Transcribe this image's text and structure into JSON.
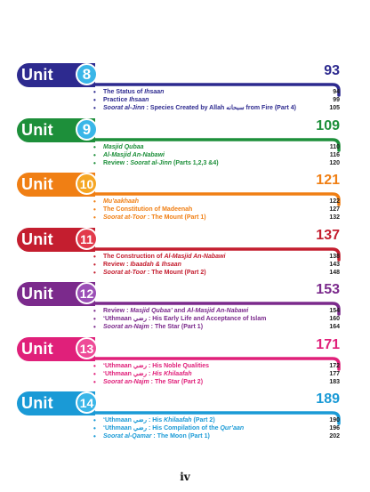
{
  "units": [
    {
      "label": "Unit",
      "number": "8",
      "page": "93",
      "color": "#2d2a8f",
      "circle": "#3ab6e8",
      "entries": [
        {
          "bullet": "•",
          "parts": [
            {
              "t": "The Status of "
            },
            {
              "t": "Ihsaan",
              "i": true
            }
          ],
          "page": "94"
        },
        {
          "bullet": "•",
          "parts": [
            {
              "t": "Practice "
            },
            {
              "t": "Ihsaan",
              "i": true
            }
          ],
          "page": "99"
        },
        {
          "bullet": "•",
          "parts": [
            {
              "t": "Soorat al-Jinn",
              "i": true
            },
            {
              "t": " : Species Created by Allah سبحانه from Fire (Part 4)"
            }
          ],
          "page": "105"
        }
      ]
    },
    {
      "label": "Unit",
      "number": "9",
      "page": "109",
      "color": "#1d8f3a",
      "circle": "#3ab6e8",
      "entries": [
        {
          "bullet": "•",
          "parts": [
            {
              "t": "Masjid Qubaa",
              "i": true
            }
          ],
          "page": "110"
        },
        {
          "bullet": "•",
          "parts": [
            {
              "t": "Al-Masjid An-Nabawi",
              "i": true
            }
          ],
          "page": "116"
        },
        {
          "bullet": "•",
          "parts": [
            {
              "t": "Review : "
            },
            {
              "t": "Soorat al-Jinn",
              "i": true
            },
            {
              "t": " (Parts 1,2,3 &4)"
            }
          ],
          "page": "120"
        }
      ]
    },
    {
      "label": "Unit",
      "number": "10",
      "page": "121",
      "color": "#f07f14",
      "circle": "#f5a623",
      "entries": [
        {
          "bullet": "•",
          "parts": [
            {
              "t": "Mu’aakhaah",
              "i": true
            }
          ],
          "page": "122"
        },
        {
          "bullet": "•",
          "parts": [
            {
              "t": "The Constitution of Madeenah"
            }
          ],
          "page": "127"
        },
        {
          "bullet": "•",
          "parts": [
            {
              "t": "Soorat at-Toor",
              "i": true
            },
            {
              "t": " : The Mount (Part 1)"
            }
          ],
          "page": "132"
        }
      ]
    },
    {
      "label": "Unit",
      "number": "11",
      "page": "137",
      "color": "#c41e2f",
      "circle": "#e23a4b",
      "entries": [
        {
          "bullet": "•",
          "parts": [
            {
              "t": "The Construction of "
            },
            {
              "t": "Al-Masjid An-Nabawi",
              "i": true
            }
          ],
          "page": "138"
        },
        {
          "bullet": "•",
          "parts": [
            {
              "t": "Review : "
            },
            {
              "t": "Ibaadah & Ihsaan",
              "i": true
            }
          ],
          "page": "143"
        },
        {
          "bullet": "•",
          "parts": [
            {
              "t": "Soorat at-Toor",
              "i": true
            },
            {
              "t": " : The Mount (Part 2)"
            }
          ],
          "page": "148"
        }
      ]
    },
    {
      "label": "Unit",
      "number": "12",
      "page": "153",
      "color": "#7b2a8c",
      "circle": "#9b4fb6",
      "entries": [
        {
          "bullet": "•",
          "parts": [
            {
              "t": "Review : "
            },
            {
              "t": "Masjid Qubaa’",
              "i": true
            },
            {
              "t": " and "
            },
            {
              "t": "Al-Masjid An-Nabawi",
              "i": true
            }
          ],
          "page": "154"
        },
        {
          "bullet": "•",
          "parts": [
            {
              "t": "‘Uthmaan رضي : His Early Life and Acceptance of Islam"
            }
          ],
          "page": "160"
        },
        {
          "bullet": "•",
          "parts": [
            {
              "t": "Soorat an-Najm",
              "i": true
            },
            {
              "t": " : The Star  (Part 1)"
            }
          ],
          "page": "164"
        }
      ]
    },
    {
      "label": "Unit",
      "number": "13",
      "page": "171",
      "color": "#e0207a",
      "circle": "#ee4b98",
      "entries": [
        {
          "bullet": "•",
          "parts": [
            {
              "t": "‘Uthmaan رضي : His Noble Qualities"
            }
          ],
          "page": "172"
        },
        {
          "bullet": "•",
          "parts": [
            {
              "t": "‘Uthmaan رضي : "
            },
            {
              "t": "His Khilaafah",
              "i": true
            }
          ],
          "page": "177"
        },
        {
          "bullet": "•",
          "parts": [
            {
              "t": "Soorat an-Najm",
              "i": true
            },
            {
              "t": " : The Star (Part 2)"
            }
          ],
          "page": "183"
        }
      ]
    },
    {
      "label": "Unit",
      "number": "14",
      "page": "189",
      "color": "#1a9ad6",
      "circle": "#3ab6e8",
      "entries": [
        {
          "bullet": "•",
          "parts": [
            {
              "t": "‘Uthmaan رضي : His "
            },
            {
              "t": "Khilaafah",
              "i": true
            },
            {
              "t": " (Part 2)"
            }
          ],
          "page": "190"
        },
        {
          "bullet": "•",
          "parts": [
            {
              "t": "‘Uthmaan رضي : His Compilation of the "
            },
            {
              "t": "Qur’aan",
              "i": true
            }
          ],
          "page": "196"
        },
        {
          "bullet": "•",
          "parts": [
            {
              "t": "Soorat al-Qamar",
              "i": true
            },
            {
              "t": " : The Moon (Part 1)"
            }
          ],
          "page": "202"
        }
      ]
    }
  ],
  "footer": {
    "page_roman": "iv"
  }
}
